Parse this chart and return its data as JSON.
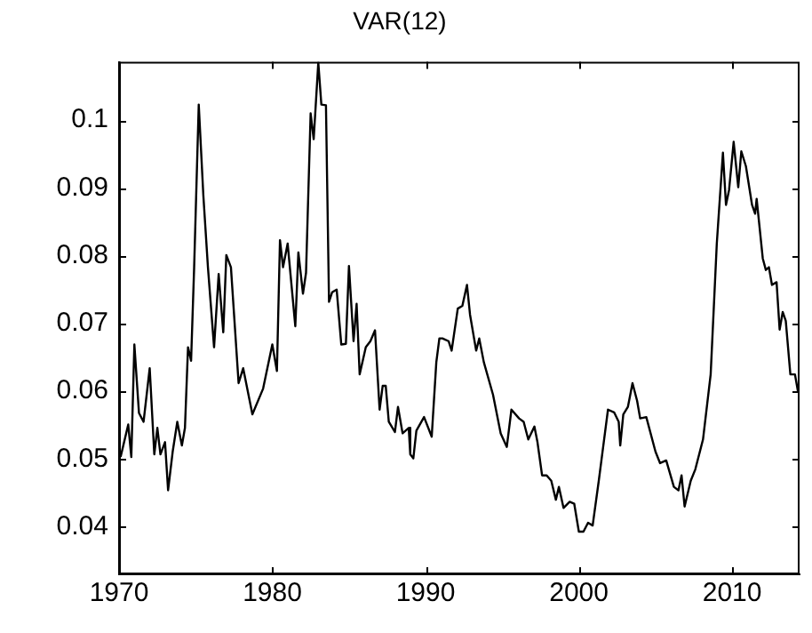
{
  "chart_data": {
    "type": "line",
    "title": "VAR(12)",
    "x": [
      1970.1,
      1970.6,
      1970.8,
      1971.0,
      1971.3,
      1971.6,
      1972.0,
      1972.3,
      1972.5,
      1972.7,
      1973.0,
      1973.2,
      1973.5,
      1973.8,
      1974.1,
      1974.3,
      1974.5,
      1974.7,
      1974.9,
      1975.2,
      1975.5,
      1975.8,
      1976.2,
      1976.5,
      1976.8,
      1977.0,
      1977.3,
      1977.8,
      1978.1,
      1978.7,
      1979.4,
      1980.0,
      1980.3,
      1980.5,
      1980.7,
      1981.0,
      1981.5,
      1981.7,
      1982.0,
      1982.2,
      1982.5,
      1982.7,
      1983.0,
      1983.2,
      1983.5,
      1983.7,
      1983.9,
      1984.2,
      1984.5,
      1984.8,
      1985.0,
      1985.3,
      1985.5,
      1985.7,
      1986.1,
      1986.4,
      1986.7,
      1987.0,
      1987.2,
      1987.4,
      1987.6,
      1988.0,
      1988.2,
      1988.5,
      1988.9,
      1989.0,
      1989.2,
      1989.4,
      1989.9,
      1990.4,
      1990.7,
      1990.9,
      1991.1,
      1991.5,
      1991.7,
      1992.1,
      1992.4,
      1992.7,
      1992.9,
      1993.3,
      1993.5,
      1993.8,
      1994.4,
      1994.9,
      1995.3,
      1995.6,
      1996.1,
      1996.4,
      1996.7,
      1997.1,
      1997.3,
      1997.6,
      1997.9,
      1998.2,
      1998.5,
      1998.7,
      1999.0,
      1999.4,
      1999.7,
      2000.0,
      2000.3,
      2000.6,
      2000.9,
      2001.3,
      2001.9,
      2002.3,
      2002.6,
      2002.7,
      2002.9,
      2003.2,
      2003.5,
      2003.8,
      2004.0,
      2004.4,
      2005.0,
      2005.3,
      2005.7,
      2006.2,
      2006.5,
      2006.7,
      2006.9,
      2007.3,
      2007.6,
      2008.1,
      2008.6,
      2009.0,
      2009.4,
      2009.6,
      2009.8,
      2010.1,
      2010.4,
      2010.6,
      2010.9,
      2011.3,
      2011.5,
      2011.6,
      2012.0,
      2012.2,
      2012.4,
      2012.6,
      2012.9,
      2013.1,
      2013.3,
      2013.5,
      2013.8,
      2014.1,
      2014.3
    ],
    "series": [
      {
        "color": "#000000",
        "values": [
          0.0503,
          0.0551,
          0.0503,
          0.0669,
          0.0568,
          0.0555,
          0.0634,
          0.0507,
          0.0546,
          0.0507,
          0.0525,
          0.0454,
          0.0511,
          0.0555,
          0.052,
          0.0546,
          0.0665,
          0.0645,
          0.0783,
          0.1023,
          0.0889,
          0.0783,
          0.0665,
          0.0773,
          0.0687,
          0.0801,
          0.0783,
          0.0612,
          0.0634,
          0.0566,
          0.0604,
          0.0669,
          0.063,
          0.0823,
          0.0783,
          0.0818,
          0.0696,
          0.0805,
          0.0744,
          0.0775,
          0.101,
          0.0972,
          0.1085,
          0.1023,
          0.1022,
          0.0732,
          0.0746,
          0.075,
          0.0669,
          0.067,
          0.0785,
          0.0674,
          0.0729,
          0.0625,
          0.0665,
          0.0674,
          0.069,
          0.0573,
          0.0608,
          0.0608,
          0.0555,
          0.054,
          0.0577,
          0.0538,
          0.0546,
          0.0507,
          0.0501,
          0.0542,
          0.0562,
          0.0533,
          0.0643,
          0.0678,
          0.0678,
          0.0674,
          0.066,
          0.0722,
          0.0726,
          0.0757,
          0.0713,
          0.066,
          0.0678,
          0.0643,
          0.0595,
          0.0538,
          0.0518,
          0.0573,
          0.056,
          0.0555,
          0.0529,
          0.0548,
          0.0525,
          0.0476,
          0.0476,
          0.0468,
          0.044,
          0.0459,
          0.0428,
          0.0437,
          0.0434,
          0.0393,
          0.0393,
          0.0406,
          0.0402,
          0.0468,
          0.0573,
          0.0569,
          0.0555,
          0.052,
          0.0566,
          0.0577,
          0.0612,
          0.0586,
          0.056,
          0.0562,
          0.0511,
          0.0494,
          0.0498,
          0.0459,
          0.0454,
          0.0476,
          0.043,
          0.0468,
          0.0485,
          0.0529,
          0.0625,
          0.0818,
          0.0952,
          0.0875,
          0.0897,
          0.0968,
          0.0901,
          0.0954,
          0.0932,
          0.0875,
          0.0862,
          0.0884,
          0.0796,
          0.0779,
          0.0783,
          0.0757,
          0.0761,
          0.0691,
          0.0717,
          0.0704,
          0.0625,
          0.0625,
          0.0599
        ]
      }
    ],
    "xlim": [
      1970,
      2014.4
    ],
    "xticks": [
      1970,
      1980,
      1990,
      2000,
      2010
    ],
    "ylim": [
      0.033,
      0.1086
    ],
    "yticks": [
      0.04,
      0.05,
      0.06,
      0.07,
      0.08,
      0.09,
      0.1
    ],
    "grid": false,
    "legend": false,
    "marker": "none",
    "line_style": "solid"
  }
}
